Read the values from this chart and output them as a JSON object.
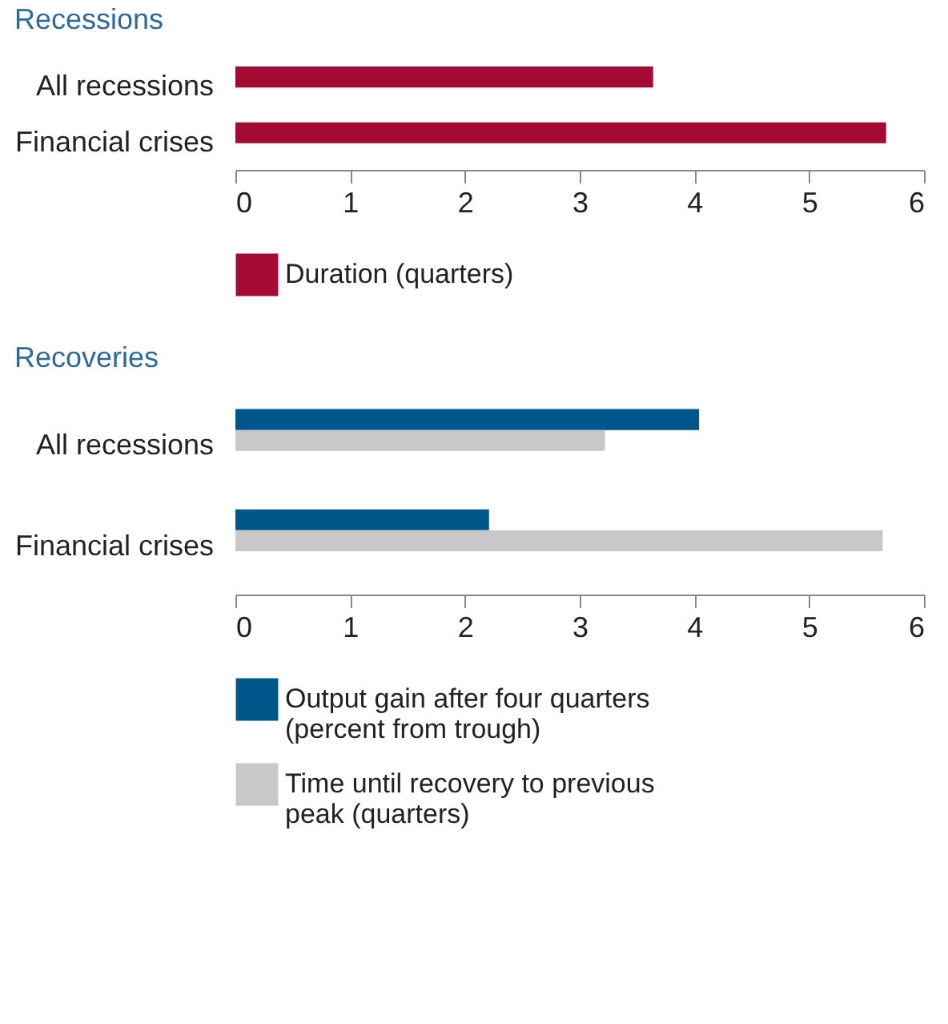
{
  "chart_data": [
    {
      "type": "bar",
      "orientation": "horizontal",
      "title": "Recessions",
      "categories": [
        "All recessions",
        "Financial crises"
      ],
      "series": [
        {
          "name": "Duration (quarters)",
          "color": "#a50a35",
          "values": [
            3.64,
            5.67
          ]
        }
      ],
      "xlim": [
        0,
        6
      ],
      "xticks": [
        0,
        1,
        2,
        3,
        4,
        5,
        6
      ],
      "grid": false,
      "legend": "bottom"
    },
    {
      "type": "bar",
      "orientation": "horizontal",
      "title": "Recoveries",
      "categories": [
        "All recessions",
        "Financial crises"
      ],
      "series": [
        {
          "name": "Output gain after four quarters (percent from trough)",
          "color": "#00568b",
          "values": [
            4.04,
            2.21
          ]
        },
        {
          "name": "Time until recovery to previous peak (quarters)",
          "color": "#c8c8ca",
          "values": [
            3.22,
            5.64
          ]
        }
      ],
      "xlim": [
        0,
        6
      ],
      "xticks": [
        0,
        1,
        2,
        3,
        4,
        5,
        6
      ],
      "grid": false,
      "legend": "bottom"
    }
  ]
}
